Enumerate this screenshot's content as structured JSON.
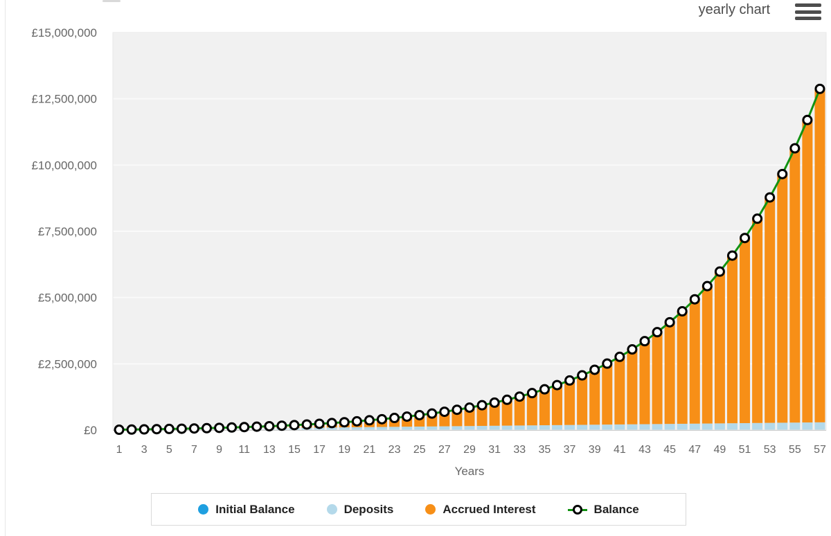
{
  "header": {
    "view_label": "yearly chart"
  },
  "colors": {
    "initial_balance": "#1e9fe0",
    "deposits": "#b4d9ea",
    "accrued_interest": "#f78f17",
    "balance_line": "#129212",
    "marker_fill": "#ffffff",
    "marker_ring": "#000000",
    "plot_bg": "#f1f1f1",
    "plot_border": "#e7e7e7",
    "grid": "#fafafa",
    "axis_line": "#cccccc",
    "axis_text": "#666666"
  },
  "legend": {
    "items": [
      {
        "label": "Initial Balance",
        "swatch": "circle",
        "color": "#1e9fe0"
      },
      {
        "label": "Deposits",
        "swatch": "circle",
        "color": "#b4d9ea"
      },
      {
        "label": "Accrued Interest",
        "swatch": "circle",
        "color": "#f78f17"
      },
      {
        "label": "Balance",
        "swatch": "line-marker",
        "color": "#129212"
      }
    ]
  },
  "chart_data": {
    "type": "bar",
    "subtype": "stacked-bars-with-line",
    "title": "",
    "xlabel": "Years",
    "ylabel": "",
    "currency": "£",
    "ylim": [
      0,
      15000000
    ],
    "y_ticks": [
      0,
      2500000,
      5000000,
      7500000,
      10000000,
      12500000,
      15000000
    ],
    "y_tick_labels": [
      "£0",
      "£2,500,000",
      "£5,000,000",
      "£7,500,000",
      "£10,000,000",
      "£12,500,000",
      "£15,000,000"
    ],
    "x": [
      1,
      2,
      3,
      4,
      5,
      6,
      7,
      8,
      9,
      10,
      11,
      12,
      13,
      14,
      15,
      16,
      17,
      18,
      19,
      20,
      21,
      22,
      23,
      24,
      25,
      26,
      27,
      28,
      29,
      30,
      31,
      32,
      33,
      34,
      35,
      36,
      37,
      38,
      39,
      40,
      41,
      42,
      43,
      44,
      45,
      46,
      47,
      48,
      49,
      50,
      51,
      52,
      53,
      54,
      55,
      56,
      57
    ],
    "x_ticks": [
      1,
      3,
      5,
      7,
      9,
      11,
      13,
      15,
      17,
      19,
      21,
      23,
      25,
      27,
      29,
      31,
      33,
      35,
      37,
      39,
      41,
      43,
      45,
      47,
      49,
      51,
      53,
      55,
      57
    ],
    "stacked_bars": {
      "initial_balance": {
        "label": "Initial Balance",
        "value_per_year": 6500
      },
      "deposits": {
        "label": "Deposits",
        "cumulative": [
          5000,
          10000,
          15000,
          20000,
          25000,
          30000,
          35000,
          40000,
          45000,
          50000,
          55000,
          60000,
          65000,
          70000,
          75000,
          80000,
          85000,
          90000,
          95000,
          100000,
          105000,
          110000,
          115000,
          120000,
          125000,
          130000,
          135000,
          140000,
          145000,
          150000,
          155000,
          160000,
          165000,
          170000,
          175000,
          180000,
          185000,
          190000,
          195000,
          200000,
          205000,
          210000,
          215000,
          220000,
          225000,
          230000,
          235000,
          240000,
          245000,
          250000,
          255000,
          260000,
          265000,
          270000,
          275000,
          280000,
          285000
        ]
      },
      "accrued_interest": {
        "label": "Accrued Interest",
        "cumulative": [
          650,
          1865,
          3702,
          6222,
          9494,
          13593,
          18603,
          24613,
          31724,
          40046,
          49701,
          60831,
          73563,
          88070,
          104515,
          123116,
          144078,
          167635,
          194049,
          223604,
          256614,
          293426,
          334418,
          380010,
          430661,
          486877,
          549215,
          618286,
          694765,
          779391,
          872980,
          976428,
          1090721,
          1216943,
          1356288,
          1510066,
          1679723,
          1866845,
          2073180,
          2300648,
          2551363,
          2827649,
          3132064,
          3467420,
          3836812,
          4243644,
          4691658,
          5184974,
          5728121,
          6326083,
          6984342,
          7708926,
          8506468,
          9384265,
          10350342,
          11413526,
          12583528
        ]
      }
    },
    "balance_line": {
      "label": "Balance",
      "values": [
        12150,
        18365,
        25202,
        32722,
        40994,
        50093,
        60103,
        71113,
        83224,
        96546,
        111201,
        127331,
        145063,
        164570,
        186015,
        209616,
        235578,
        264135,
        295549,
        330104,
        368114,
        409926,
        455918,
        506510,
        562161,
        623377,
        690715,
        764786,
        846265,
        935891,
        1034480,
        1142928,
        1262221,
        1393443,
        1537788,
        1696566,
        1871223,
        2063345,
        2274680,
        2507148,
        2762863,
        3044149,
        3353564,
        3693920,
        4068312,
        4480144,
        4933158,
        5431474,
        5979621,
        6582583,
        7245842,
        7975426,
        8777968,
        9660765,
        10631842,
        11700026,
        12875028
      ]
    },
    "legend_position": "bottom",
    "grid": true
  }
}
